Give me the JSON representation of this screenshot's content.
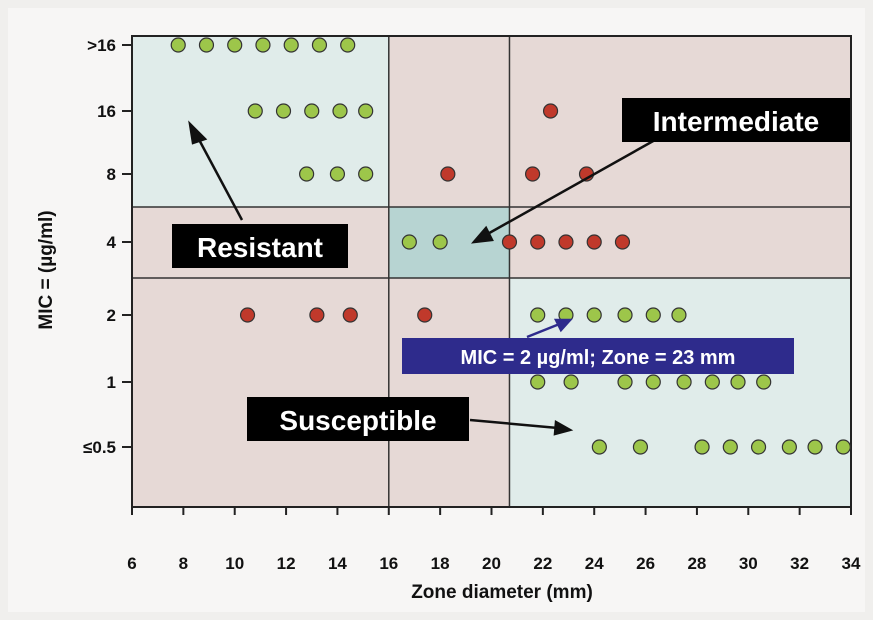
{
  "chart_data": {
    "type": "scatter",
    "title": "",
    "xlabel": "Zone diameter (mm)",
    "ylabel": "MIC = (µg/ml)",
    "x_ticks": [
      "6",
      "8",
      "10",
      "12",
      "14",
      "16",
      "18",
      "20",
      "22",
      "24",
      "26",
      "28",
      "30",
      "32",
      "34"
    ],
    "y_ticks": [
      "≤0.5",
      "1",
      "2",
      "4",
      "8",
      "16",
      ">16"
    ],
    "xlim": [
      6,
      34
    ],
    "y_categories": [
      "≤0.5",
      "1",
      "2",
      "4",
      "8",
      "16",
      ">16"
    ],
    "grid": false,
    "breakpoints": {
      "zone_mm": [
        16,
        20.7
      ],
      "mic_ug_ml": [
        2,
        4
      ]
    },
    "regions": [
      {
        "name": "Resistant",
        "label": "Resistant",
        "zone": "≤16 mm",
        "mic": "≥8 µg/ml"
      },
      {
        "name": "Intermediate",
        "label": "Intermediate",
        "zone": "16–20.7 mm",
        "mic": "4 µg/ml"
      },
      {
        "name": "Susceptible",
        "label": "Susceptible",
        "zone": "≥20.7 mm",
        "mic": "≤2 µg/ml"
      }
    ],
    "annotation": "MIC = 2 µg/ml; Zone = 23 mm",
    "colors": {
      "agree": "#9dc64a",
      "disagree": "#c0392b",
      "resistant_region": "#e0ecea",
      "intermediate_region": "#b7d4d2",
      "susceptible_region": "#e0ecea",
      "error_region": "#e6d9d6",
      "callout_bg": "#000000",
      "annotation_bg": "#2e2b8c"
    },
    "series": [
      {
        "name": "",
        "color": "green",
        "points": [
          {
            "x": 7.8,
            "y": ">16"
          },
          {
            "x": 8.9,
            "y": ">16"
          },
          {
            "x": 10.0,
            "y": ">16"
          },
          {
            "x": 11.1,
            "y": ">16"
          },
          {
            "x": 12.2,
            "y": ">16"
          },
          {
            "x": 13.3,
            "y": ">16"
          },
          {
            "x": 14.4,
            "y": ">16"
          },
          {
            "x": 10.8,
            "y": "16"
          },
          {
            "x": 11.9,
            "y": "16"
          },
          {
            "x": 13.0,
            "y": "16"
          },
          {
            "x": 14.1,
            "y": "16"
          },
          {
            "x": 15.1,
            "y": "16"
          },
          {
            "x": 12.8,
            "y": "8"
          },
          {
            "x": 14.0,
            "y": "8"
          },
          {
            "x": 15.1,
            "y": "8"
          },
          {
            "x": 16.8,
            "y": "4"
          },
          {
            "x": 18.0,
            "y": "4"
          },
          {
            "x": 21.8,
            "y": "2"
          },
          {
            "x": 22.9,
            "y": "2"
          },
          {
            "x": 24.0,
            "y": "2"
          },
          {
            "x": 25.2,
            "y": "2"
          },
          {
            "x": 26.3,
            "y": "2"
          },
          {
            "x": 27.3,
            "y": "2"
          },
          {
            "x": 21.8,
            "y": "1"
          },
          {
            "x": 23.1,
            "y": "1"
          },
          {
            "x": 25.2,
            "y": "1"
          },
          {
            "x": 26.3,
            "y": "1"
          },
          {
            "x": 27.5,
            "y": "1"
          },
          {
            "x": 28.6,
            "y": "1"
          },
          {
            "x": 29.6,
            "y": "1"
          },
          {
            "x": 30.6,
            "y": "1"
          },
          {
            "x": 24.2,
            "y": "≤0.5"
          },
          {
            "x": 25.8,
            "y": "≤0.5"
          },
          {
            "x": 28.2,
            "y": "≤0.5"
          },
          {
            "x": 29.3,
            "y": "≤0.5"
          },
          {
            "x": 30.4,
            "y": "≤0.5"
          },
          {
            "x": 31.6,
            "y": "≤0.5"
          },
          {
            "x": 32.6,
            "y": "≤0.5"
          },
          {
            "x": 33.7,
            "y": "≤0.5"
          }
        ]
      },
      {
        "name": "",
        "color": "red",
        "points": [
          {
            "x": 22.3,
            "y": "16"
          },
          {
            "x": 18.3,
            "y": "8"
          },
          {
            "x": 21.6,
            "y": "8"
          },
          {
            "x": 23.7,
            "y": "8"
          },
          {
            "x": 20.7,
            "y": "4"
          },
          {
            "x": 21.8,
            "y": "4"
          },
          {
            "x": 22.9,
            "y": "4"
          },
          {
            "x": 24.0,
            "y": "4"
          },
          {
            "x": 25.1,
            "y": "4"
          },
          {
            "x": 10.5,
            "y": "2"
          },
          {
            "x": 13.2,
            "y": "2"
          },
          {
            "x": 14.5,
            "y": "2"
          },
          {
            "x": 17.4,
            "y": "2"
          }
        ]
      }
    ]
  }
}
